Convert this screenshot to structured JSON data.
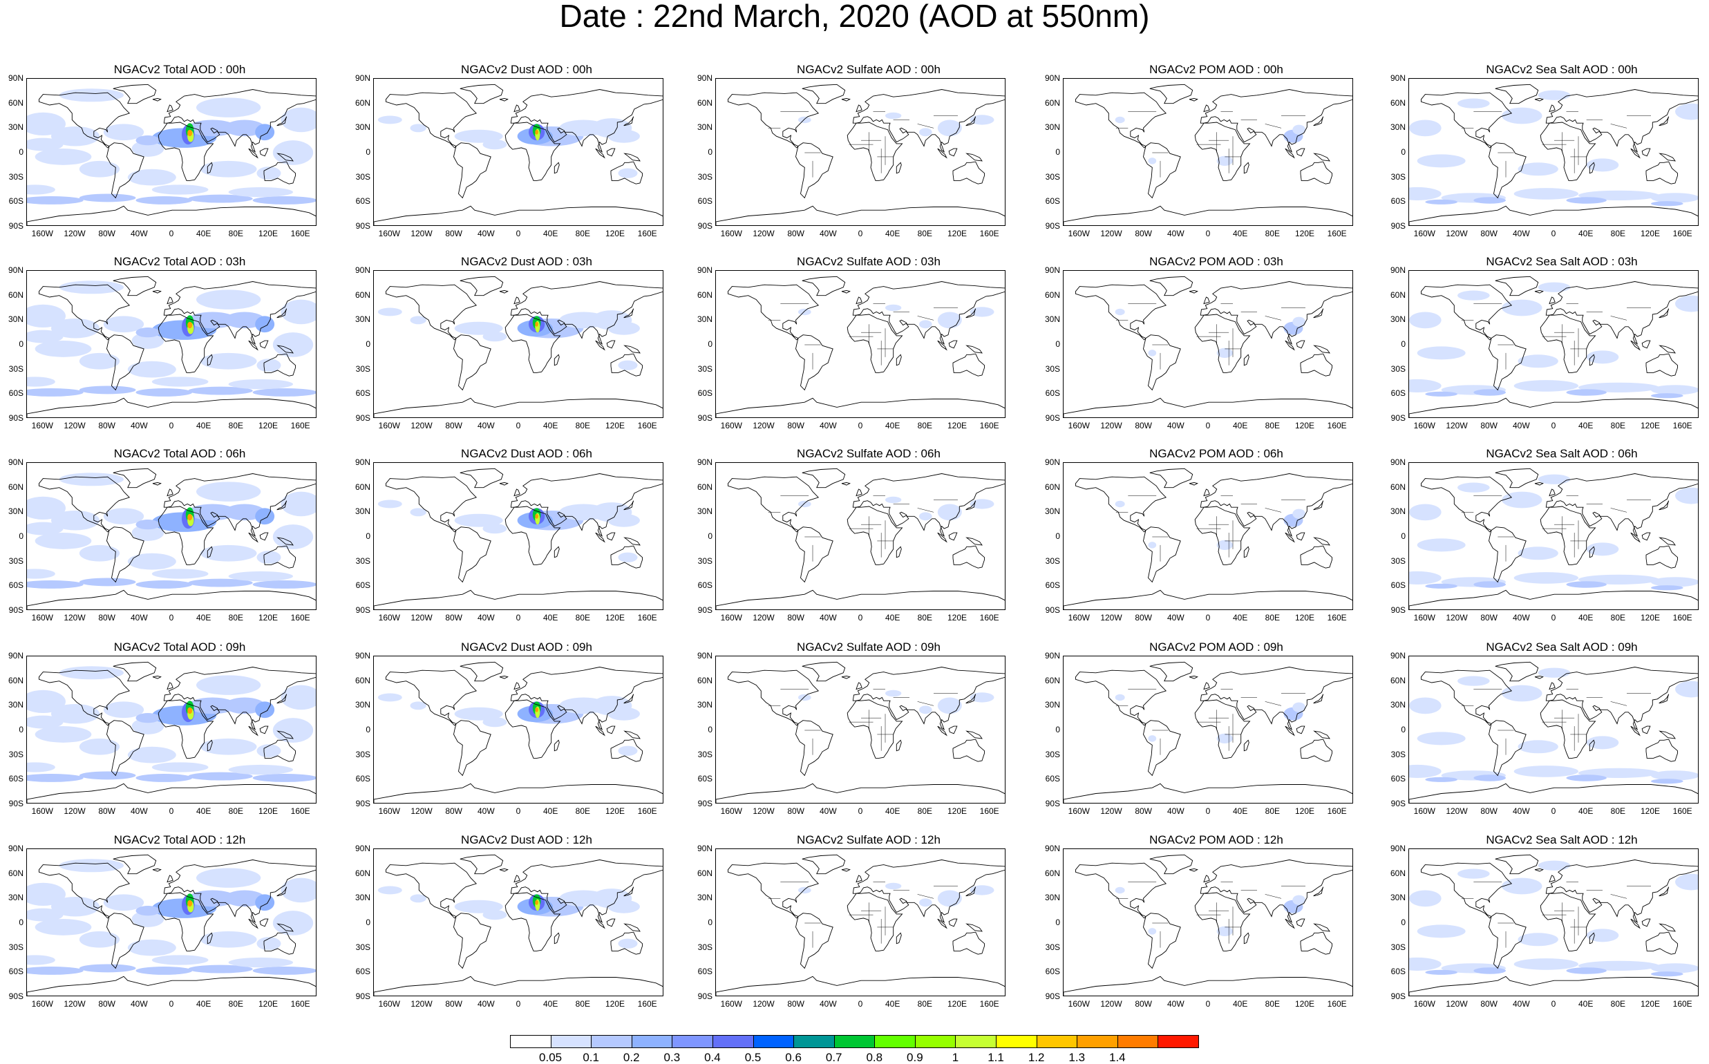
{
  "title": "Date : 22nd March, 2020 (AOD at 550nm)",
  "map": {
    "lat_ticks": [
      "90N",
      "60N",
      "30N",
      "0",
      "30S",
      "60S",
      "90S"
    ],
    "lon_ticks": [
      "160W",
      "120W",
      "80W",
      "40W",
      "0",
      "40E",
      "80E",
      "120E",
      "160E"
    ],
    "projection": "cylindrical-equidistant",
    "coastline_color": "#000000",
    "country_borders_on": [
      "Sulfate",
      "POM",
      "Sea Salt"
    ]
  },
  "columns": [
    "Total",
    "Dust",
    "Sulfate",
    "POM",
    "Sea Salt"
  ],
  "rows": [
    "00h",
    "03h",
    "06h",
    "09h",
    "12h"
  ],
  "panels": [
    [
      "NGACv2 Total AOD : 00h",
      "NGACv2 Dust AOD : 00h",
      "NGACv2 Sulfate AOD : 00h",
      "NGACv2 POM AOD : 00h",
      "NGACv2 Sea Salt AOD : 00h"
    ],
    [
      "NGACv2 Total AOD : 03h",
      "NGACv2 Dust AOD : 03h",
      "NGACv2 Sulfate AOD : 03h",
      "NGACv2 POM AOD : 03h",
      "NGACv2 Sea Salt AOD : 03h"
    ],
    [
      "NGACv2 Total AOD : 06h",
      "NGACv2 Dust AOD : 06h",
      "NGACv2 Sulfate AOD : 06h",
      "NGACv2 POM AOD : 06h",
      "NGACv2 Sea Salt AOD : 06h"
    ],
    [
      "NGACv2 Total AOD : 09h",
      "NGACv2 Dust AOD : 09h",
      "NGACv2 Sulfate AOD : 09h",
      "NGACv2 POM AOD : 09h",
      "NGACv2 Sea Salt  AOD : 09h"
    ],
    [
      "NGACv2 Total AOD  : 12h",
      "NGACv2 Dust AOD : 12h",
      "NGACv2 Sulfate AOD : 12h",
      "NGACv2 POM  AOD : 12h",
      "NGACv2 Sea Salt  AOD : 12h"
    ]
  ],
  "colorbar": {
    "labels": [
      "0.05",
      "0.1",
      "0.2",
      "0.3",
      "0.4",
      "0.5",
      "0.6",
      "0.7",
      "0.8",
      "0.9",
      "1",
      "1.1",
      "1.2",
      "1.3",
      "1.4"
    ],
    "colors": [
      "#ffffff",
      "#d6e2ff",
      "#b5c9ff",
      "#8eb2ff",
      "#7f96ff",
      "#6370f8",
      "#0063ff",
      "#009696",
      "#00c633",
      "#63ff00",
      "#96ff00",
      "#c6ff33",
      "#ffff00",
      "#ffc600",
      "#ffa000",
      "#ff7c00",
      "#ff1900"
    ]
  }
}
